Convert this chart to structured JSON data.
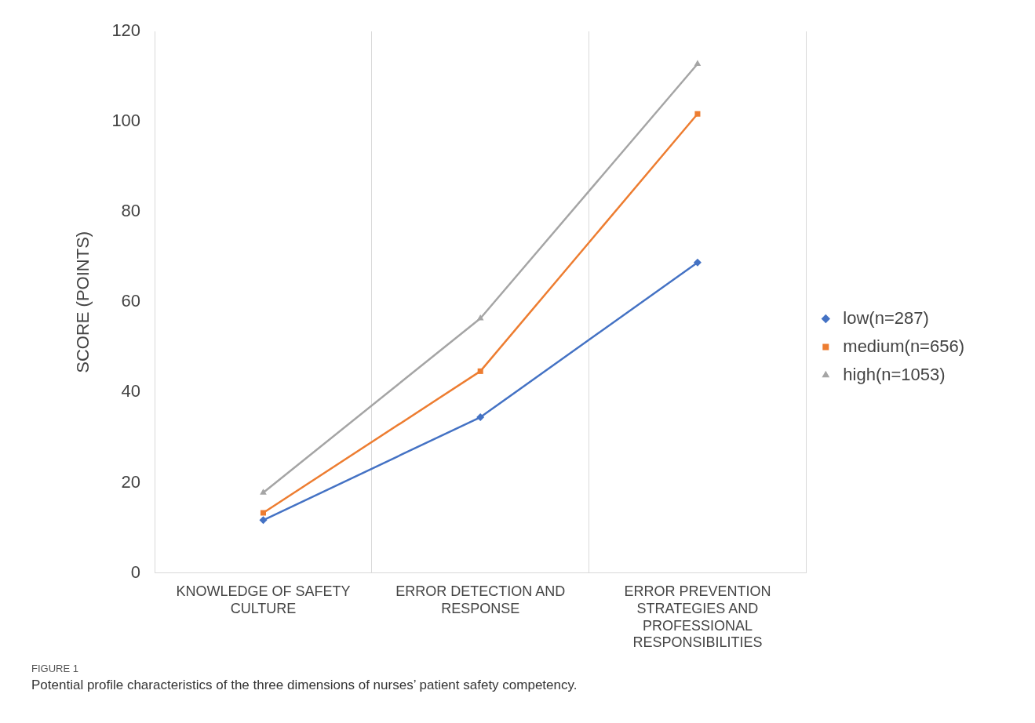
{
  "chart_data": {
    "type": "line",
    "ylabel": "SCORE (POINTS)",
    "categories": [
      "KNOWLEDGE OF SAFETY CULTURE",
      "ERROR DETECTION AND RESPONSE",
      "ERROR PREVENTION STRATEGIES AND PROFESSIONAL RESPONSIBILITIES"
    ],
    "series": [
      {
        "name": "low(n=287)",
        "color": "#4472c4",
        "marker": "diamond",
        "values": [
          11.7,
          34.5,
          68.8
        ]
      },
      {
        "name": "medium(n=656)",
        "color": "#ed7d31",
        "marker": "square",
        "values": [
          13.3,
          44.7,
          101.7
        ]
      },
      {
        "name": "high(n=1053)",
        "color": "#a5a5a5",
        "marker": "triangle",
        "values": [
          17.8,
          56.4,
          112.8
        ]
      }
    ],
    "ylim": [
      0,
      120
    ],
    "yticks": [
      0,
      20,
      40,
      60,
      80,
      100,
      120
    ],
    "grid": "x",
    "legend": "right",
    "line_style": "solid",
    "annotations": [
      "FIGURE 1",
      "Potential profile characteristics of the three dimensions of nurses’ patient safety competency."
    ]
  }
}
